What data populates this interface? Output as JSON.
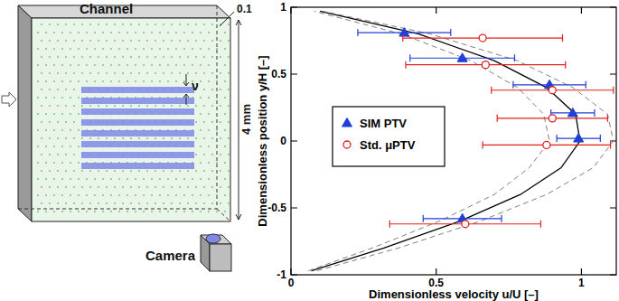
{
  "chart_data": {
    "type": "scatter",
    "xlabel": "Dimensionless velocity u/U  [–]",
    "ylabel": "Dimensionless position y/H  [–]",
    "xlim": [
      0,
      1.12
    ],
    "xticks": [
      0,
      0.5,
      1
    ],
    "ylim": [
      -1,
      1
    ],
    "yticks": [
      -1,
      -0.5,
      0,
      0.5,
      1
    ],
    "grid": false,
    "legend": "left",
    "series": [
      {
        "name": "SIM PTV",
        "color": "#1f3fd8",
        "marker": "triangle",
        "x": [
          0.39,
          0.59,
          0.89,
          0.97,
          0.99,
          0.59
        ],
        "values": [
          0.81,
          0.62,
          0.42,
          0.21,
          0.02,
          -0.58
        ],
        "x_error": [
          0.16,
          0.18,
          0.125,
          0.075,
          0.075,
          0.135
        ]
      },
      {
        "name": "Std. μPTV",
        "color": "#e0201c",
        "marker": "circle",
        "x": [
          0.66,
          0.67,
          0.9,
          0.9,
          0.88,
          0.6
        ],
        "values": [
          0.77,
          0.57,
          0.38,
          0.17,
          -0.03,
          -0.62
        ],
        "x_error": [
          0.275,
          0.275,
          0.21,
          0.19,
          0.22,
          0.26
        ]
      },
      {
        "type": "line",
        "color": "#000000",
        "line_style": "solid",
        "x": [
          0.07,
          0.32,
          0.58,
          0.79,
          0.93,
          0.995,
          0.98,
          0.88,
          0.7,
          0.44,
          0.1
        ],
        "values": [
          -0.97,
          -0.8,
          -0.6,
          -0.4,
          -0.2,
          0,
          0.2,
          0.4,
          0.6,
          0.8,
          0.97
        ]
      },
      {
        "type": "line",
        "color": "#808080",
        "line_style": "dashed",
        "x": [
          0.09,
          0.37,
          0.65,
          0.88,
          1.04,
          1.11,
          1.09,
          0.97,
          0.78,
          0.48,
          0.11
        ],
        "values": [
          -0.97,
          -0.8,
          -0.6,
          -0.4,
          -0.2,
          0,
          0.2,
          0.4,
          0.6,
          0.8,
          0.97
        ]
      },
      {
        "type": "line",
        "color": "#808080",
        "line_style": "dashed",
        "x": [
          0.06,
          0.28,
          0.51,
          0.7,
          0.82,
          0.89,
          0.87,
          0.78,
          0.62,
          0.38,
          0.08
        ],
        "values": [
          -0.97,
          -0.8,
          -0.6,
          -0.4,
          -0.2,
          0,
          0.2,
          0.4,
          0.6,
          0.8,
          0.97
        ]
      }
    ]
  },
  "diagram": {
    "title": "Channel",
    "depth_label": "0.1",
    "height_label": "4 mm",
    "fringe_label": "ν",
    "camera_label": "Camera"
  }
}
